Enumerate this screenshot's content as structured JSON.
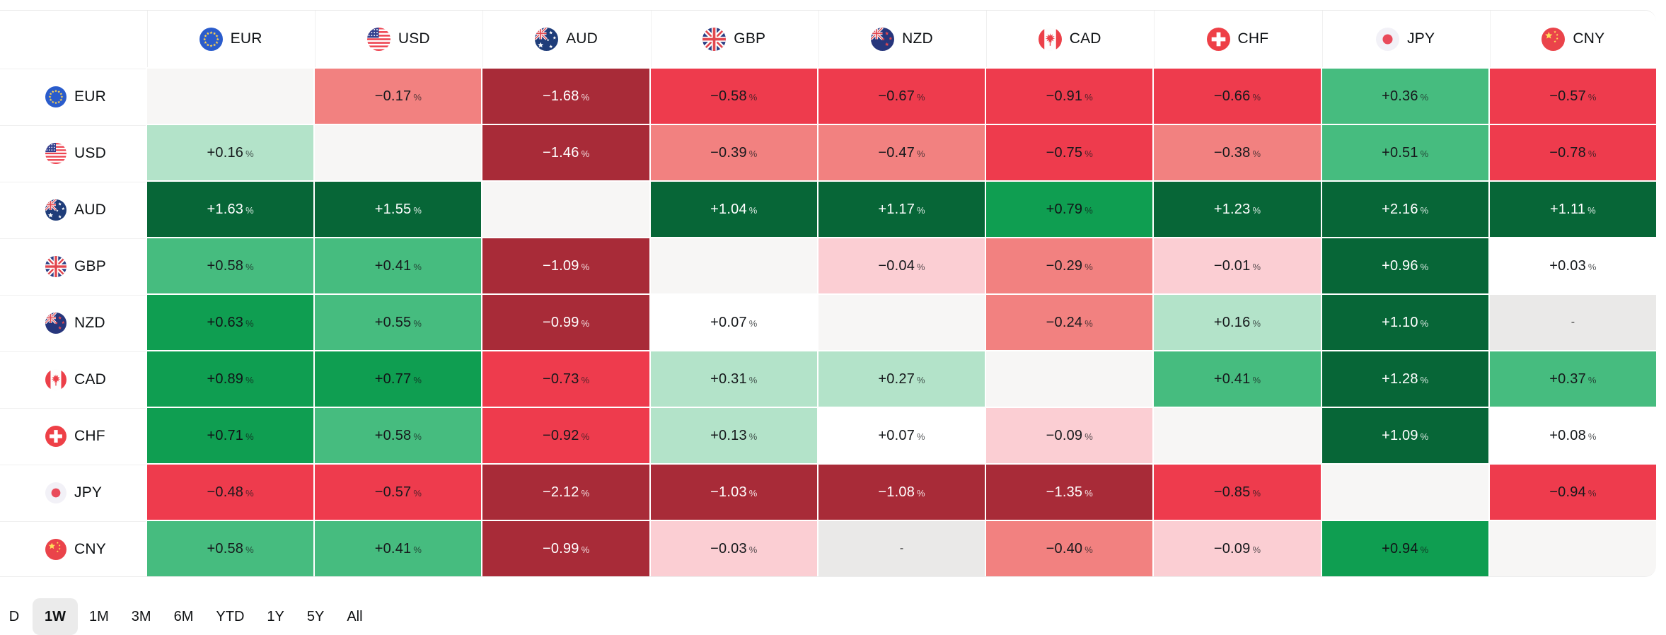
{
  "chart_data": {
    "type": "heatmap",
    "columns": [
      "EUR",
      "USD",
      "AUD",
      "GBP",
      "NZD",
      "CAD",
      "CHF",
      "JPY",
      "CNY"
    ],
    "rows": [
      "EUR",
      "USD",
      "AUD",
      "GBP",
      "NZD",
      "CAD",
      "CHF",
      "JPY",
      "CNY"
    ],
    "unit": "%",
    "no_data_label": "-",
    "matrix": [
      {
        "base": "EUR",
        "values": [
          null,
          "−0.17",
          "−1.68",
          "−0.58",
          "−0.67",
          "−0.91",
          "−0.66",
          "+0.36",
          "−0.57"
        ]
      },
      {
        "base": "USD",
        "values": [
          "+0.16",
          null,
          "−1.46",
          "−0.39",
          "−0.47",
          "−0.75",
          "−0.38",
          "+0.51",
          "−0.78"
        ]
      },
      {
        "base": "AUD",
        "values": [
          "+1.63",
          "+1.55",
          null,
          "+1.04",
          "+1.17",
          "+0.79",
          "+1.23",
          "+2.16",
          "+1.11"
        ]
      },
      {
        "base": "GBP",
        "values": [
          "+0.58",
          "+0.41",
          "−1.09",
          null,
          "−0.04",
          "−0.29",
          "−0.01",
          "+0.96",
          "+0.03"
        ]
      },
      {
        "base": "NZD",
        "values": [
          "+0.63",
          "+0.55",
          "−0.99",
          "+0.07",
          null,
          "−0.24",
          "+0.16",
          "+1.10",
          "-"
        ]
      },
      {
        "base": "CAD",
        "values": [
          "+0.89",
          "+0.77",
          "−0.73",
          "+0.31",
          "+0.27",
          null,
          "+0.41",
          "+1.28",
          "+0.37"
        ]
      },
      {
        "base": "CHF",
        "values": [
          "+0.71",
          "+0.58",
          "−0.92",
          "+0.13",
          "+0.07",
          "−0.09",
          null,
          "+1.09",
          "+0.08"
        ]
      },
      {
        "base": "JPY",
        "values": [
          "−0.48",
          "−0.57",
          "−2.12",
          "−1.03",
          "−1.08",
          "−1.35",
          "−0.85",
          null,
          "−0.94"
        ]
      },
      {
        "base": "CNY",
        "values": [
          "+0.58",
          "+0.41",
          "−0.99",
          "−0.03",
          "-",
          "−0.40",
          "−0.09",
          "+0.94",
          null
        ]
      }
    ],
    "palette": {
      "diagonal": "#f7f6f5",
      "no_data": "#eae9e8",
      "pos_flat": "#ffffff",
      "pos_light": "#b3e3c9",
      "pos_medium": "#46bc7f",
      "pos_strong": "#0f9e51",
      "pos_max": "#076637",
      "neg_light": "#fbced3",
      "neg_medium": "#f28180",
      "neg_strong": "#ee3b4d",
      "neg_max": "#a82b38"
    },
    "legend_position": "none",
    "grid": false
  },
  "period_selector": {
    "options": [
      "D",
      "1W",
      "1M",
      "3M",
      "6M",
      "YTD",
      "1Y",
      "5Y",
      "All"
    ],
    "selected": "1W"
  }
}
